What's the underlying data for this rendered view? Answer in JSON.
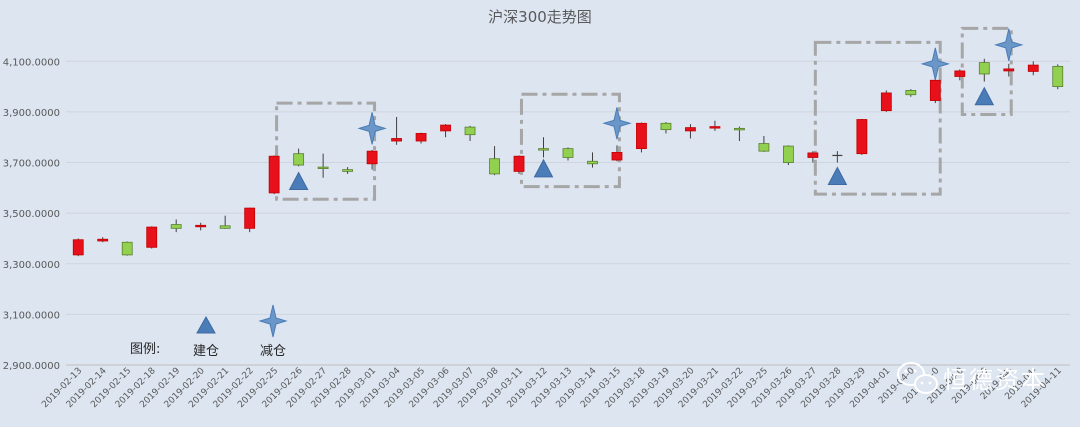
{
  "chart_data": {
    "type": "candlestick",
    "title": "沪深300走势图",
    "ylim": [
      2900,
      4200
    ],
    "y_ticks": [
      "2,900.0000",
      "3,100.0000",
      "3,300.0000",
      "3,500.0000",
      "3,700.0000",
      "3,900.0000",
      "4,100.0000"
    ],
    "y_tick_values": [
      2900,
      3100,
      3300,
      3500,
      3700,
      3900,
      4100
    ],
    "grid": true,
    "up_color": "#e8101a",
    "down_color": "#92d050",
    "candles": [
      {
        "date": "2019-02-13",
        "open": 3335,
        "close": 3395,
        "high": 3400,
        "low": 3330
      },
      {
        "date": "2019-02-14",
        "open": 3390,
        "close": 3397,
        "high": 3405,
        "low": 3385
      },
      {
        "date": "2019-02-15",
        "open": 3385,
        "close": 3335,
        "high": 3388,
        "low": 3332
      },
      {
        "date": "2019-02-18",
        "open": 3365,
        "close": 3445,
        "high": 3448,
        "low": 3360
      },
      {
        "date": "2019-02-19",
        "open": 3455,
        "close": 3440,
        "high": 3475,
        "low": 3425
      },
      {
        "date": "2019-02-20",
        "open": 3448,
        "close": 3452,
        "high": 3462,
        "low": 3432
      },
      {
        "date": "2019-02-21",
        "open": 3450,
        "close": 3440,
        "high": 3490,
        "low": 3438
      },
      {
        "date": "2019-02-22",
        "open": 3440,
        "close": 3520,
        "high": 3522,
        "low": 3425
      },
      {
        "date": "2019-02-25",
        "open": 3580,
        "close": 3725,
        "high": 3728,
        "low": 3575
      },
      {
        "date": "2019-02-26",
        "open": 3735,
        "close": 3690,
        "high": 3755,
        "low": 3685
      },
      {
        "date": "2019-02-27",
        "open": 3682,
        "close": 3678,
        "high": 3735,
        "low": 3640
      },
      {
        "date": "2019-02-28",
        "open": 3672,
        "close": 3665,
        "high": 3682,
        "low": 3655
      },
      {
        "date": "2019-03-01",
        "open": 3695,
        "close": 3745,
        "high": 3750,
        "low": 3672
      },
      {
        "date": "2019-03-04",
        "open": 3785,
        "close": 3795,
        "high": 3880,
        "low": 3770
      },
      {
        "date": "2019-03-05",
        "open": 3785,
        "close": 3815,
        "high": 3818,
        "low": 3775
      },
      {
        "date": "2019-03-06",
        "open": 3825,
        "close": 3848,
        "high": 3852,
        "low": 3800
      },
      {
        "date": "2019-03-07",
        "open": 3840,
        "close": 3810,
        "high": 3845,
        "low": 3785
      },
      {
        "date": "2019-03-08",
        "open": 3715,
        "close": 3655,
        "high": 3765,
        "low": 3650
      },
      {
        "date": "2019-03-11",
        "open": 3665,
        "close": 3725,
        "high": 3728,
        "low": 3655
      },
      {
        "date": "2019-03-12",
        "open": 3755,
        "close": 3752,
        "high": 3800,
        "low": 3720
      },
      {
        "date": "2019-03-13",
        "open": 3755,
        "close": 3720,
        "high": 3760,
        "low": 3708
      },
      {
        "date": "2019-03-14",
        "open": 3705,
        "close": 3695,
        "high": 3740,
        "low": 3680
      },
      {
        "date": "2019-03-15",
        "open": 3710,
        "close": 3740,
        "high": 3768,
        "low": 3705
      },
      {
        "date": "2019-03-18",
        "open": 3755,
        "close": 3855,
        "high": 3858,
        "low": 3740
      },
      {
        "date": "2019-03-19",
        "open": 3855,
        "close": 3830,
        "high": 3860,
        "low": 3815
      },
      {
        "date": "2019-03-20",
        "open": 3825,
        "close": 3838,
        "high": 3852,
        "low": 3795
      },
      {
        "date": "2019-03-21",
        "open": 3840,
        "close": 3842,
        "high": 3865,
        "low": 3825
      },
      {
        "date": "2019-03-22",
        "open": 3835,
        "close": 3832,
        "high": 3842,
        "low": 3785
      },
      {
        "date": "2019-03-25",
        "open": 3775,
        "close": 3745,
        "high": 3805,
        "low": 3742
      },
      {
        "date": "2019-03-26",
        "open": 3765,
        "close": 3700,
        "high": 3768,
        "low": 3690
      },
      {
        "date": "2019-03-27",
        "open": 3720,
        "close": 3738,
        "high": 3745,
        "low": 3700
      },
      {
        "date": "2019-03-28",
        "open": 3728,
        "close": 3728,
        "high": 3745,
        "low": 3700
      },
      {
        "date": "2019-03-29",
        "open": 3735,
        "close": 3870,
        "high": 3872,
        "low": 3730
      },
      {
        "date": "2019-04-01",
        "open": 3905,
        "close": 3975,
        "high": 3985,
        "low": 3900
      },
      {
        "date": "2019-04-02",
        "open": 3985,
        "close": 3968,
        "high": 3990,
        "low": 3960
      },
      {
        "date": "2019-04-03",
        "open": 3945,
        "close": 4025,
        "high": 4030,
        "low": 3935
      },
      {
        "date": "2019-04-04",
        "open": 4040,
        "close": 4062,
        "high": 4068,
        "low": 4025
      },
      {
        "date": "2019-04-08",
        "open": 4095,
        "close": 4050,
        "high": 4110,
        "low": 4020
      },
      {
        "date": "2019-04-09",
        "open": 4062,
        "close": 4070,
        "high": 4090,
        "low": 4040
      },
      {
        "date": "2019-04-10",
        "open": 4060,
        "close": 4085,
        "high": 4100,
        "low": 4045
      },
      {
        "date": "2019-04-11",
        "open": 4080,
        "close": 4000,
        "high": 4088,
        "low": 3990
      }
    ],
    "x_labels": [
      "2019-02-13",
      "2019-02-14",
      "2019-02-15",
      "2019-02-18",
      "2019-02-19",
      "2019-02-20",
      "2019-02-21",
      "2019-02-22",
      "2019-02-25",
      "2019-02-26",
      "2019-02-27",
      "2019-02-28",
      "2019-03-01",
      "2019-03-04",
      "2019-03-05",
      "2019-03-06",
      "2019-03-07",
      "2019-03-08",
      "2019-03-11",
      "2019-03-12",
      "2019-03-13",
      "2019-03-14",
      "2019-03-15",
      "2019-03-18",
      "2019-03-19",
      "2019-03-20",
      "2019-03-21",
      "2019-03-22",
      "2019-03-25",
      "2019-03-26",
      "2019-03-27",
      "2019-03-28",
      "2019-03-29",
      "2019-04-01",
      "2019-04-0",
      "2019-04-0",
      "2019-04-0",
      "2019-04-0",
      "2019-04-",
      "2019-04-",
      "2019-04-11"
    ],
    "buy_markers": [
      {
        "index": 9,
        "value": 3625
      },
      {
        "index": 19,
        "value": 3675
      },
      {
        "index": 31,
        "value": 3645
      },
      {
        "index": 37,
        "value": 3960
      }
    ],
    "sell_markers": [
      {
        "index": 12,
        "value": 3835
      },
      {
        "index": 22,
        "value": 3855
      },
      {
        "index": 35,
        "value": 4090
      },
      {
        "index": 38,
        "value": 4165
      }
    ],
    "highlight_boxes": [
      {
        "from_index": 8.6,
        "to_index": 12.6,
        "y_low": 3555,
        "y_high": 3935
      },
      {
        "from_index": 18.6,
        "to_index": 22.6,
        "y_low": 3605,
        "y_high": 3970
      },
      {
        "from_index": 30.6,
        "to_index": 35.7,
        "y_low": 3575,
        "y_high": 4175
      },
      {
        "from_index": 36.6,
        "to_index": 38.6,
        "y_low": 3890,
        "y_high": 4230
      }
    ],
    "legend": {
      "heading": "图例:",
      "buy_label": "建仓",
      "sell_label": "减仓",
      "marker_color": "#4a7cb8",
      "sell_color": "#6b97c8"
    }
  },
  "watermark": {
    "text": "恒德资本"
  }
}
